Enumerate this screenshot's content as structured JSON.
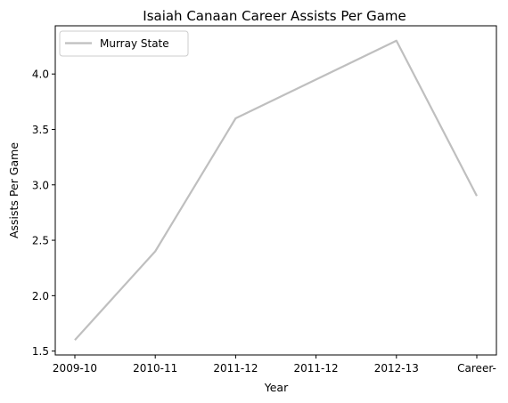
{
  "chart_data": {
    "type": "line",
    "title": "Isaiah Canaan Career Assists Per Game",
    "xlabel": "Year",
    "ylabel": "Assists Per Game",
    "categories": [
      "2009-10",
      "2010-11",
      "2011-12",
      "2011-12",
      "2012-13",
      "Career-"
    ],
    "series": [
      {
        "name": "Murray State",
        "values": [
          1.6,
          2.4,
          3.6,
          3.95,
          4.3,
          2.9
        ],
        "color": "#bfbfbf"
      }
    ],
    "ylim": [
      1.465,
      4.435
    ],
    "yticks": [
      1.5,
      2.0,
      2.5,
      3.0,
      3.5,
      4.0
    ],
    "ytick_labels": [
      "1.5",
      "2.0",
      "2.5",
      "3.0",
      "3.5",
      "4.0"
    ],
    "grid": false,
    "legend": "top-left"
  }
}
